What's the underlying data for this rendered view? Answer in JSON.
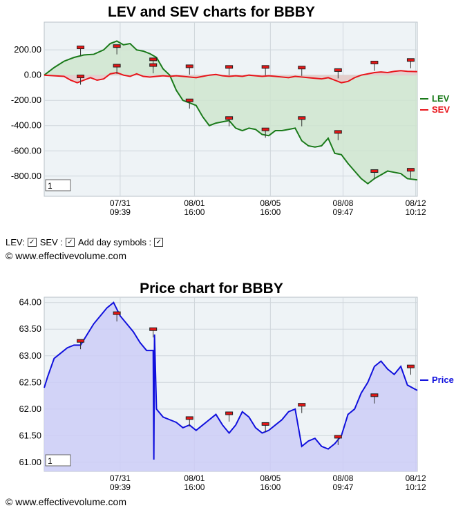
{
  "chart_data": [
    {
      "type": "line",
      "title": "LEV and SEV charts for BBBY",
      "x_tick_labels": [
        [
          "07/31",
          "09:39"
        ],
        [
          "08/01",
          "16:00"
        ],
        [
          "08/05",
          "16:00"
        ],
        [
          "08/08",
          "09:47"
        ],
        [
          "08/12",
          "10:12"
        ]
      ],
      "y_ticks": [
        "200.00",
        "0.00",
        "-200.00",
        "-400.00",
        "-600.00",
        "-800.00"
      ],
      "ylim": [
        -960,
        420
      ],
      "legend": "right",
      "grid": true,
      "zoom_box": "1",
      "series": [
        {
          "name": "LEV",
          "color": "#1a7a1a",
          "fill": "#cfe5cf",
          "points": [
            [
              0,
              0
            ],
            [
              3,
              60
            ],
            [
              6,
              110
            ],
            [
              9,
              140
            ],
            [
              12,
              160
            ],
            [
              15,
              165
            ],
            [
              18,
              200
            ],
            [
              20,
              250
            ],
            [
              22,
              270
            ],
            [
              24,
              240
            ],
            [
              26,
              250
            ],
            [
              28,
              200
            ],
            [
              30,
              190
            ],
            [
              32,
              170
            ],
            [
              34,
              140
            ],
            [
              36,
              50
            ],
            [
              38,
              0
            ],
            [
              40,
              -120
            ],
            [
              42,
              -200
            ],
            [
              44,
              -220
            ],
            [
              46,
              -240
            ],
            [
              48,
              -330
            ],
            [
              50,
              -400
            ],
            [
              52,
              -380
            ],
            [
              54,
              -370
            ],
            [
              56,
              -360
            ],
            [
              58,
              -420
            ],
            [
              60,
              -440
            ],
            [
              62,
              -420
            ],
            [
              64,
              -430
            ],
            [
              66,
              -470
            ],
            [
              68,
              -480
            ],
            [
              70,
              -440
            ],
            [
              72,
              -440
            ],
            [
              74,
              -430
            ],
            [
              76,
              -420
            ],
            [
              78,
              -520
            ],
            [
              80,
              -560
            ],
            [
              82,
              -570
            ],
            [
              84,
              -560
            ],
            [
              86,
              -500
            ],
            [
              88,
              -620
            ],
            [
              90,
              -630
            ],
            [
              92,
              -700
            ],
            [
              94,
              -760
            ],
            [
              96,
              -820
            ],
            [
              98,
              -860
            ],
            [
              100,
              -820
            ],
            [
              102,
              -790
            ],
            [
              104,
              -760
            ],
            [
              106,
              -770
            ],
            [
              108,
              -780
            ],
            [
              110,
              -820
            ],
            [
              113,
              -830
            ]
          ]
        },
        {
          "name": "SEV",
          "color": "#e8141a",
          "fill": "#e6c9c9",
          "points": [
            [
              0,
              0
            ],
            [
              3,
              -5
            ],
            [
              6,
              -10
            ],
            [
              8,
              -40
            ],
            [
              10,
              -60
            ],
            [
              12,
              -40
            ],
            [
              14,
              -20
            ],
            [
              16,
              -40
            ],
            [
              18,
              -30
            ],
            [
              20,
              10
            ],
            [
              22,
              20
            ],
            [
              24,
              0
            ],
            [
              26,
              -10
            ],
            [
              28,
              10
            ],
            [
              30,
              -10
            ],
            [
              32,
              -15
            ],
            [
              34,
              -10
            ],
            [
              36,
              -5
            ],
            [
              38,
              -10
            ],
            [
              40,
              -5
            ],
            [
              42,
              -10
            ],
            [
              44,
              -15
            ],
            [
              46,
              -20
            ],
            [
              48,
              -10
            ],
            [
              50,
              0
            ],
            [
              52,
              5
            ],
            [
              54,
              -5
            ],
            [
              56,
              -10
            ],
            [
              58,
              -5
            ],
            [
              60,
              -10
            ],
            [
              62,
              0
            ],
            [
              64,
              -5
            ],
            [
              66,
              -10
            ],
            [
              68,
              -5
            ],
            [
              70,
              -10
            ],
            [
              72,
              -15
            ],
            [
              74,
              -20
            ],
            [
              76,
              -10
            ],
            [
              78,
              -15
            ],
            [
              80,
              -20
            ],
            [
              82,
              -25
            ],
            [
              84,
              -30
            ],
            [
              86,
              -20
            ],
            [
              88,
              -40
            ],
            [
              90,
              -60
            ],
            [
              92,
              -50
            ],
            [
              94,
              -20
            ],
            [
              96,
              0
            ],
            [
              98,
              10
            ],
            [
              100,
              20
            ],
            [
              102,
              25
            ],
            [
              104,
              20
            ],
            [
              106,
              30
            ],
            [
              108,
              35
            ],
            [
              110,
              30
            ],
            [
              113,
              28
            ]
          ]
        }
      ],
      "day_markers": [
        {
          "x": 11,
          "y": 220
        },
        {
          "x": 11,
          "y": -10
        },
        {
          "x": 22,
          "y": 230
        },
        {
          "x": 22,
          "y": 75
        },
        {
          "x": 33,
          "y": 125
        },
        {
          "x": 33,
          "y": 80
        },
        {
          "x": 44,
          "y": 70
        },
        {
          "x": 44,
          "y": -200
        },
        {
          "x": 56,
          "y": 65
        },
        {
          "x": 56,
          "y": -340
        },
        {
          "x": 67,
          "y": 65
        },
        {
          "x": 67,
          "y": -430
        },
        {
          "x": 78,
          "y": 60
        },
        {
          "x": 78,
          "y": -340
        },
        {
          "x": 89,
          "y": 40
        },
        {
          "x": 89,
          "y": -450
        },
        {
          "x": 100,
          "y": 100
        },
        {
          "x": 100,
          "y": -760
        },
        {
          "x": 111,
          "y": 120
        },
        {
          "x": 111,
          "y": -750
        }
      ]
    },
    {
      "type": "area",
      "title": "Price chart for BBBY",
      "x_tick_labels": [
        [
          "07/31",
          "09:39"
        ],
        [
          "08/01",
          "16:00"
        ],
        [
          "08/05",
          "16:00"
        ],
        [
          "08/08",
          "09:47"
        ],
        [
          "08/12",
          "10:12"
        ]
      ],
      "y_ticks": [
        "64.00",
        "63.50",
        "63.00",
        "62.50",
        "62.00",
        "61.50",
        "61.00"
      ],
      "ylim": [
        60.83,
        64.1
      ],
      "legend": "right",
      "grid": true,
      "zoom_box": "1",
      "series": [
        {
          "name": "Price",
          "color": "#1010dd",
          "fill": "#ccccf7",
          "points": [
            [
              0,
              62.4
            ],
            [
              1,
              62.6
            ],
            [
              3,
              62.95
            ],
            [
              5,
              63.05
            ],
            [
              7,
              63.15
            ],
            [
              9,
              63.2
            ],
            [
              11,
              63.2
            ],
            [
              13,
              63.4
            ],
            [
              15,
              63.6
            ],
            [
              17,
              63.75
            ],
            [
              19,
              63.9
            ],
            [
              21,
              64.0
            ],
            [
              23,
              63.75
            ],
            [
              25,
              63.6
            ],
            [
              27,
              63.45
            ],
            [
              29,
              63.25
            ],
            [
              31,
              63.1
            ],
            [
              33,
              63.1
            ],
            [
              33.2,
              61.05
            ],
            [
              33.4,
              63.4
            ],
            [
              34,
              62.0
            ],
            [
              36,
              61.85
            ],
            [
              38,
              61.8
            ],
            [
              40,
              61.75
            ],
            [
              42,
              61.65
            ],
            [
              44,
              61.7
            ],
            [
              46,
              61.6
            ],
            [
              48,
              61.7
            ],
            [
              50,
              61.8
            ],
            [
              52,
              61.9
            ],
            [
              54,
              61.7
            ],
            [
              56,
              61.55
            ],
            [
              58,
              61.7
            ],
            [
              60,
              61.95
            ],
            [
              62,
              61.85
            ],
            [
              64,
              61.65
            ],
            [
              66,
              61.55
            ],
            [
              68,
              61.6
            ],
            [
              70,
              61.7
            ],
            [
              72,
              61.8
            ],
            [
              74,
              61.95
            ],
            [
              76,
              62.0
            ],
            [
              78,
              61.3
            ],
            [
              80,
              61.4
            ],
            [
              82,
              61.45
            ],
            [
              84,
              61.3
            ],
            [
              86,
              61.25
            ],
            [
              88,
              61.35
            ],
            [
              90,
              61.5
            ],
            [
              92,
              61.9
            ],
            [
              94,
              62.0
            ],
            [
              96,
              62.3
            ],
            [
              98,
              62.5
            ],
            [
              100,
              62.8
            ],
            [
              102,
              62.9
            ],
            [
              104,
              62.75
            ],
            [
              106,
              62.65
            ],
            [
              108,
              62.8
            ],
            [
              110,
              62.45
            ],
            [
              113,
              62.35
            ]
          ]
        }
      ],
      "day_markers": [
        {
          "x": 11,
          "y": 63.28
        },
        {
          "x": 22,
          "y": 63.8
        },
        {
          "x": 33,
          "y": 63.5
        },
        {
          "x": 44,
          "y": 61.83
        },
        {
          "x": 56,
          "y": 61.92
        },
        {
          "x": 67,
          "y": 61.72
        },
        {
          "x": 78,
          "y": 62.08
        },
        {
          "x": 89,
          "y": 61.48
        },
        {
          "x": 100,
          "y": 62.26
        },
        {
          "x": 111,
          "y": 62.8
        }
      ]
    }
  ],
  "controls": {
    "lev_label": "LEV:",
    "sev_label": "SEV :",
    "day_label": "Add day symbols :",
    "check_glyph": "✓"
  },
  "copyright": "© www.effectivevolume.com"
}
